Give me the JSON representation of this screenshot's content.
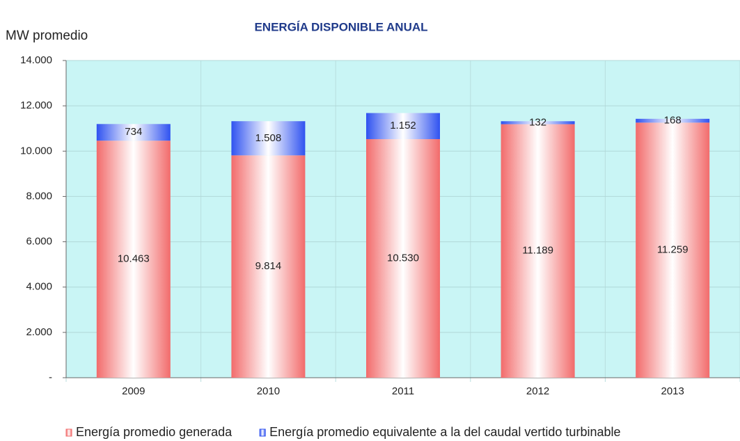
{
  "chart_data": {
    "type": "stacked_bar",
    "title": "ENERGÍA DISPONIBLE ANUAL",
    "y_label": "MW promedio",
    "categories": [
      "2009",
      "2010",
      "2011",
      "2012",
      "2013"
    ],
    "series": [
      {
        "name": "Energía promedio generada",
        "color": "#f26b6b",
        "values": [
          10463,
          9814,
          10530,
          11189,
          11259
        ],
        "value_labels": [
          "10.463",
          "9.814",
          "10.530",
          "11.189",
          "11.259"
        ]
      },
      {
        "name": "Energía promedio equivalente a la del caudal vertido turbinable",
        "color": "#2f52f0",
        "values": [
          734,
          1508,
          1152,
          132,
          168
        ],
        "value_labels": [
          "734",
          "1.508",
          "1.152",
          "132",
          "168"
        ]
      }
    ],
    "ylim": [
      0,
      14000
    ],
    "yticks": [
      {
        "value": 0,
        "label": "-"
      },
      {
        "value": 2000,
        "label": "2.000"
      },
      {
        "value": 4000,
        "label": "4.000"
      },
      {
        "value": 6000,
        "label": "6.000"
      },
      {
        "value": 8000,
        "label": "8.000"
      },
      {
        "value": 10000,
        "label": "10.000"
      },
      {
        "value": 12000,
        "label": "12.000"
      },
      {
        "value": 14000,
        "label": "14.000"
      }
    ],
    "grid": true,
    "background": "#c9f5f5"
  }
}
